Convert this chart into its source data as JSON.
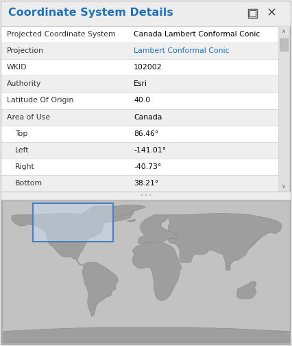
{
  "title": "Coordinate System Details",
  "title_color": "#2272B8",
  "bg_color": "#EDEDED",
  "table_rows": [
    {
      "label": "Projected Coordinate System",
      "value": "Canada Lambert Conformal Conic",
      "value_color": "#000000",
      "row_bg": "#FFFFFF"
    },
    {
      "label": "Projection",
      "value": "Lambert Conformal Conic",
      "value_color": "#2272B8",
      "row_bg": "#EFEFEF"
    },
    {
      "label": "WKID",
      "value": "102002",
      "value_color": "#000000",
      "row_bg": "#FFFFFF"
    },
    {
      "label": "Authority",
      "value": "Esri",
      "value_color": "#000000",
      "row_bg": "#EFEFEF"
    },
    {
      "label": "Latitude Of Origin",
      "value": "40.0",
      "value_color": "#000000",
      "row_bg": "#FFFFFF"
    },
    {
      "label": "Area of Use",
      "value": "Canada",
      "value_color": "#000000",
      "row_bg": "#EFEFEF"
    },
    {
      "label": "   Top",
      "value": "86.46°",
      "value_color": "#000000",
      "row_bg": "#FFFFFF"
    },
    {
      "label": "   Left",
      "value": "-141.01°",
      "value_color": "#000000",
      "row_bg": "#EFEFEF"
    },
    {
      "label": "   Right",
      "value": "-40.73°",
      "value_color": "#000000",
      "row_bg": "#FFFFFF"
    },
    {
      "label": "   Bottom",
      "value": "38.21°",
      "value_color": "#000000",
      "row_bg": "#EFEFEF"
    }
  ],
  "separator_color": "#D0D0D0",
  "border_color": "#B0B0B0",
  "scrollbar_bg": "#E0E0E0",
  "scrollbar_handle": "#BDBDBD",
  "map_ocean": "#C2C2C2",
  "map_land": "#9A9A9A",
  "highlight_border": "#4A7FC0",
  "highlight_fill": "#C5D9EE",
  "highlight_alpha": 0.55,
  "canada_lon_min": -141.01,
  "canada_lon_max": -40.73,
  "canada_lat_min": 38.21,
  "canada_lat_max": 86.46
}
